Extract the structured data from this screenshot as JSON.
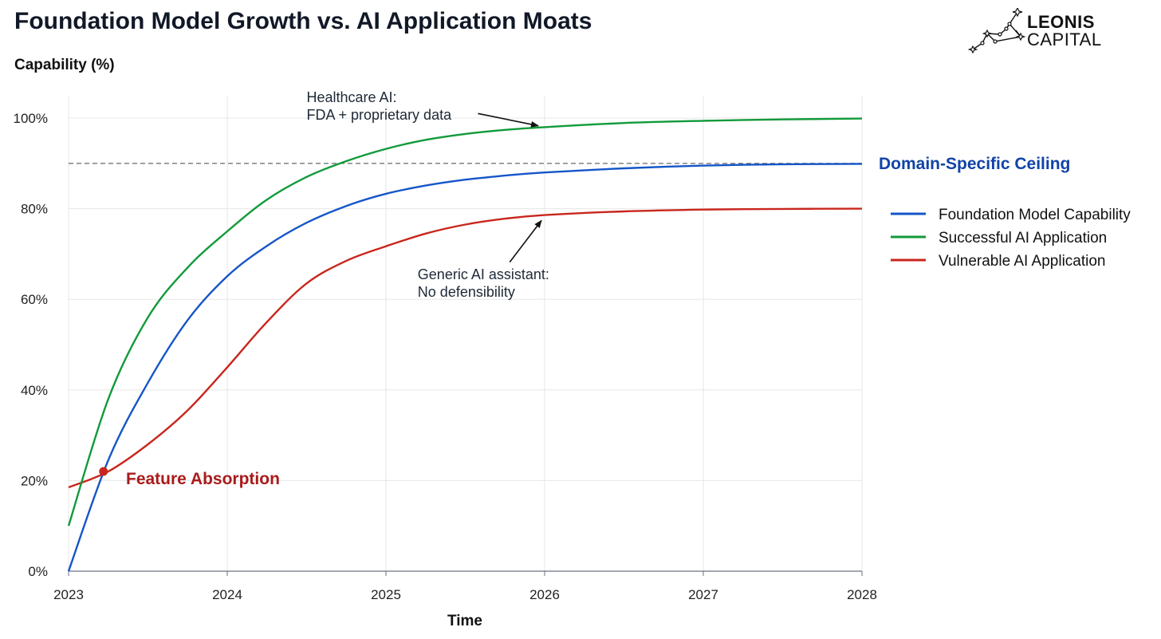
{
  "header": {
    "title": "Foundation Model Growth vs. AI Application Moats"
  },
  "logo": {
    "line1": "LEONIS",
    "line2": "CAPITAL",
    "icon": "constellation-icon"
  },
  "chart_data": {
    "type": "line",
    "title": "Foundation Model Growth vs. AI Application Moats",
    "xlabel": "Time",
    "ylabel": "Capability (%)",
    "xlim": [
      2023,
      2028
    ],
    "ylim": [
      0,
      105
    ],
    "xticks": [
      2023,
      2024,
      2025,
      2026,
      2027,
      2028
    ],
    "yticks": [
      0,
      20,
      40,
      60,
      80,
      100
    ],
    "ytick_labels": [
      "0%",
      "20%",
      "40%",
      "60%",
      "80%",
      "100%"
    ],
    "grid": true,
    "legend_position": "right",
    "series": [
      {
        "name": "Foundation Model Capability",
        "color": "#1555c8",
        "x": [
          2023.0,
          2023.25,
          2023.5,
          2023.75,
          2024.0,
          2024.25,
          2024.5,
          2024.75,
          2025.0,
          2025.25,
          2025.5,
          2025.75,
          2026.0,
          2026.5,
          2027.0,
          2027.5,
          2028.0
        ],
        "y": [
          0,
          24.5,
          41.6,
          55.4,
          65.1,
          71.8,
          76.9,
          80.6,
          83.3,
          85.1,
          86.4,
          87.3,
          88.0,
          88.9,
          89.5,
          89.8,
          89.9
        ]
      },
      {
        "name": "Successful AI Application",
        "color": "#119a3a",
        "x": [
          2023.0,
          2023.25,
          2023.5,
          2023.75,
          2024.0,
          2024.25,
          2024.5,
          2024.75,
          2025.0,
          2025.25,
          2025.5,
          2025.75,
          2026.0,
          2026.5,
          2027.0,
          2027.5,
          2028.0
        ],
        "y": [
          10,
          38,
          56,
          67,
          75,
          82,
          87,
          90.5,
          93.2,
          95.2,
          96.5,
          97.4,
          98.0,
          98.9,
          99.4,
          99.7,
          99.9
        ]
      },
      {
        "name": "Vulnerable AI Application",
        "color": "#c9261d",
        "x": [
          2023.0,
          2023.25,
          2023.5,
          2023.75,
          2024.0,
          2024.25,
          2024.5,
          2024.75,
          2025.0,
          2025.25,
          2025.5,
          2025.75,
          2026.0,
          2026.5,
          2027.0,
          2027.5,
          2028.0
        ],
        "y": [
          18.5,
          22,
          28,
          35.5,
          45,
          55,
          63.5,
          68.5,
          71.7,
          74.5,
          76.5,
          77.8,
          78.6,
          79.4,
          79.8,
          79.95,
          80.0
        ]
      }
    ],
    "reference_line": {
      "y": 90,
      "style": "dashed",
      "color": "#777777",
      "label": "Domain-Specific Ceiling",
      "label_color": "#1143a8"
    },
    "highlight_point": {
      "x": 2023.22,
      "y": 22,
      "color": "#c9261d",
      "label": "Feature Absorption",
      "label_color": "#a91b1b"
    },
    "annotations": [
      {
        "lines": [
          "Healthcare AI:",
          "FDA + proprietary data"
        ],
        "text_x": 2024.5,
        "text_y": 103.5,
        "arrow_from": [
          2025.58,
          101.0
        ],
        "arrow_to": [
          2025.96,
          98.3
        ]
      },
      {
        "lines": [
          "Generic AI assistant:",
          "No defensibility"
        ],
        "text_x": 2025.2,
        "text_y": 64.4,
        "arrow_from": [
          2025.78,
          68.2
        ],
        "arrow_to": [
          2025.98,
          77.4
        ]
      }
    ]
  }
}
